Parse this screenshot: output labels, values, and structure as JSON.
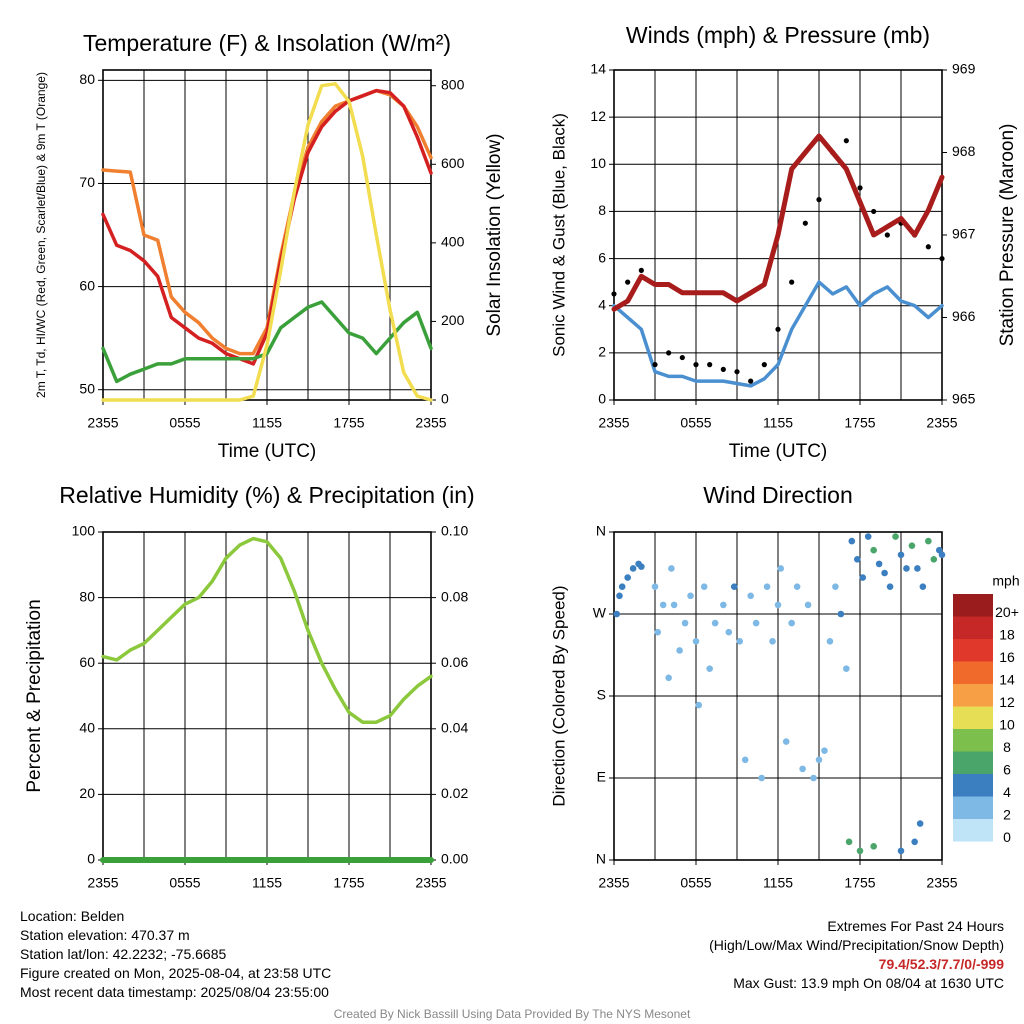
{
  "chart_data": [
    {
      "type": "line",
      "title": "Temperature (F) & Insolation (W/m²)",
      "xlabel": "Time (UTC)",
      "ylabel": "2m T, Td, HI/WC (Red, Green, Scarlet/Blue) & 9m T (Orange)",
      "ylabel_right": "Solar Insolation (Yellow)",
      "x_ticks": [
        "2355",
        "0555",
        "1155",
        "1755",
        "2355"
      ],
      "ylim": [
        49,
        81
      ],
      "y_ticks": [
        50,
        60,
        70,
        80
      ],
      "ylim_right": [
        0,
        840
      ],
      "y_ticks_right": [
        0,
        200,
        400,
        600,
        800
      ],
      "x_hours": [
        0,
        1,
        2,
        3,
        4,
        5,
        6,
        7,
        8,
        9,
        10,
        11,
        12,
        13,
        14,
        15,
        16,
        17,
        18,
        19,
        20,
        21,
        22,
        23,
        24
      ],
      "series": [
        {
          "color": "#f08030",
          "axis": "left",
          "values": [
            71.3,
            71.2,
            71.1,
            65.0,
            64.5,
            59.0,
            57.5,
            56.5,
            55.0,
            54.0,
            53.5,
            53.5,
            56.0,
            63.0,
            69.0,
            73.5,
            76.0,
            77.5,
            78.0,
            78.5,
            79.0,
            78.6,
            77.5,
            75.5,
            72.5
          ]
        },
        {
          "color": "#d42020",
          "axis": "left",
          "values": [
            67.0,
            64.0,
            63.5,
            62.5,
            61.0,
            57.0,
            56.0,
            55.0,
            54.5,
            53.5,
            53.0,
            52.5,
            55.5,
            62.5,
            68.5,
            73.0,
            75.5,
            77.0,
            78.0,
            78.5,
            79.0,
            78.8,
            77.5,
            74.5,
            71.0
          ]
        },
        {
          "color": "#3aa03a",
          "axis": "left",
          "values": [
            54.0,
            50.8,
            51.5,
            52.0,
            52.5,
            52.5,
            53.0,
            53.0,
            53.0,
            53.0,
            53.0,
            53.0,
            53.5,
            56.0,
            57.0,
            58.0,
            58.5,
            57.0,
            55.5,
            55.0,
            53.5,
            55.0,
            56.5,
            57.5,
            54.0
          ]
        },
        {
          "color": "#f2dd50",
          "axis": "right",
          "values": [
            0,
            0,
            0,
            0,
            0,
            0,
            0,
            0,
            0,
            0,
            0,
            10,
            140,
            330,
            530,
            700,
            800,
            805,
            760,
            620,
            420,
            230,
            70,
            10,
            0
          ]
        }
      ]
    },
    {
      "type": "line",
      "title": "Winds (mph) & Pressure (mb)",
      "xlabel": "Time (UTC)",
      "ylabel": "Sonic Wind & Gust (Blue, Black)",
      "ylabel_right": "Station Pressure (Maroon)",
      "x_ticks": [
        "2355",
        "0555",
        "1155",
        "1755",
        "2355"
      ],
      "ylim": [
        0,
        14
      ],
      "y_ticks": [
        0,
        2,
        4,
        6,
        8,
        10,
        12,
        14
      ],
      "ylim_right": [
        965,
        969
      ],
      "y_ticks_right": [
        965,
        966,
        967,
        968,
        969
      ],
      "x_hours": [
        0,
        1,
        2,
        3,
        4,
        5,
        6,
        7,
        8,
        9,
        10,
        11,
        12,
        13,
        14,
        15,
        16,
        17,
        18,
        19,
        20,
        21,
        22,
        23,
        24
      ],
      "series": [
        {
          "color": "#4a90d0",
          "axis": "left",
          "values": [
            4.0,
            3.5,
            3.0,
            1.2,
            1.0,
            1.0,
            0.8,
            0.8,
            0.8,
            0.7,
            0.6,
            0.9,
            1.5,
            3.0,
            4.0,
            5.0,
            4.5,
            4.8,
            4.0,
            4.5,
            4.8,
            4.2,
            4.0,
            3.5,
            4.0
          ]
        },
        {
          "color": "#000000",
          "axis": "left",
          "mode": "markers",
          "values": [
            4.5,
            5.0,
            5.5,
            1.5,
            2.0,
            1.8,
            1.5,
            1.5,
            1.3,
            1.2,
            0.8,
            1.5,
            3.0,
            5.0,
            7.5,
            8.5,
            10.5,
            11.0,
            9.0,
            8.0,
            7.0,
            7.5,
            7.0,
            6.5,
            6.0
          ]
        },
        {
          "color": "#a81c1c",
          "axis": "right",
          "values": [
            966.1,
            966.2,
            966.5,
            966.4,
            966.4,
            966.3,
            966.3,
            966.3,
            966.3,
            966.2,
            966.3,
            966.4,
            967.0,
            967.8,
            968.0,
            968.2,
            968.0,
            967.8,
            967.4,
            967.0,
            967.1,
            967.2,
            967.0,
            967.3,
            967.7
          ]
        }
      ]
    },
    {
      "type": "line",
      "title": "Relative Humidity (%) & Precipitation (in)",
      "ylabel": "Percent & Precipitation",
      "x_ticks": [
        "2355",
        "0555",
        "1155",
        "1755",
        "2355"
      ],
      "ylim": [
        0,
        100
      ],
      "y_ticks": [
        0,
        20,
        40,
        60,
        80,
        100
      ],
      "ylim_right": [
        0,
        0.1
      ],
      "y_ticks_right": [
        "0.00",
        "0.02",
        "0.04",
        "0.06",
        "0.08",
        "0.10"
      ],
      "x_hours": [
        0,
        1,
        2,
        3,
        4,
        5,
        6,
        7,
        8,
        9,
        10,
        11,
        12,
        13,
        14,
        15,
        16,
        17,
        18,
        19,
        20,
        21,
        22,
        23,
        24
      ],
      "series": [
        {
          "color": "#8cc83c",
          "axis": "left",
          "values": [
            62,
            61,
            64,
            66,
            70,
            74,
            78,
            80,
            85,
            92,
            96,
            98,
            97,
            92,
            82,
            70,
            60,
            52,
            45,
            42,
            42,
            44,
            49,
            53,
            56
          ]
        },
        {
          "color": "#3aa03a",
          "axis": "right",
          "values": [
            0,
            0,
            0,
            0,
            0,
            0,
            0,
            0,
            0,
            0,
            0,
            0,
            0,
            0,
            0,
            0,
            0,
            0,
            0,
            0,
            0,
            0,
            0,
            0,
            0
          ]
        }
      ]
    },
    {
      "type": "scatter",
      "title": "Wind Direction",
      "ylabel": "Direction (Colored By Speed)",
      "x_ticks": [
        "2355",
        "0555",
        "1155",
        "1755",
        "2355"
      ],
      "ylim": [
        0,
        360
      ],
      "y_ticks": [
        "N",
        "E",
        "S",
        "W",
        "N"
      ],
      "colorbar": {
        "unit": "mph",
        "labels": [
          "20+",
          "18",
          "16",
          "14",
          "12",
          "10",
          "8",
          "6",
          "4",
          "2",
          "0"
        ],
        "colors": [
          "#9b1c1c",
          "#c62828",
          "#e0392b",
          "#f06a2c",
          "#f79f45",
          "#e6df55",
          "#7cbf4c",
          "#4aa56a",
          "#3b7fc0",
          "#7eb9e6",
          "#bfe4f7"
        ]
      },
      "points": [
        [
          0.1,
          270,
          3
        ],
        [
          0.2,
          290,
          3
        ],
        [
          0.3,
          300,
          4
        ],
        [
          0.5,
          310,
          4
        ],
        [
          0.7,
          320,
          4
        ],
        [
          0.9,
          325,
          4
        ],
        [
          1.0,
          322,
          4
        ],
        [
          1.5,
          300,
          2
        ],
        [
          1.6,
          250,
          2
        ],
        [
          1.8,
          280,
          2
        ],
        [
          2.0,
          200,
          1
        ],
        [
          2.1,
          320,
          1
        ],
        [
          2.2,
          280,
          2
        ],
        [
          2.4,
          230,
          2
        ],
        [
          2.6,
          260,
          2
        ],
        [
          2.8,
          290,
          1
        ],
        [
          3.0,
          240,
          1
        ],
        [
          3.1,
          170,
          1
        ],
        [
          3.3,
          300,
          1
        ],
        [
          3.5,
          210,
          1
        ],
        [
          3.7,
          260,
          1
        ],
        [
          4.0,
          280,
          1
        ],
        [
          4.2,
          250,
          2
        ],
        [
          4.4,
          300,
          3
        ],
        [
          4.6,
          240,
          1
        ],
        [
          4.8,
          110,
          2
        ],
        [
          5.0,
          290,
          1
        ],
        [
          5.2,
          260,
          1
        ],
        [
          5.4,
          90,
          2
        ],
        [
          5.6,
          300,
          1
        ],
        [
          5.8,
          240,
          1
        ],
        [
          6.0,
          280,
          2
        ],
        [
          6.1,
          320,
          1
        ],
        [
          6.3,
          130,
          1
        ],
        [
          6.5,
          260,
          1
        ],
        [
          6.7,
          300,
          1
        ],
        [
          6.9,
          100,
          2
        ],
        [
          7.1,
          280,
          2
        ],
        [
          7.3,
          90,
          2
        ],
        [
          7.5,
          110,
          2
        ],
        [
          7.7,
          120,
          2
        ],
        [
          7.9,
          240,
          2
        ],
        [
          8.1,
          300,
          2
        ],
        [
          8.3,
          270,
          4
        ],
        [
          8.5,
          210,
          2
        ],
        [
          8.7,
          350,
          4
        ],
        [
          8.9,
          330,
          4
        ],
        [
          9.1,
          310,
          3
        ],
        [
          9.3,
          355,
          4
        ],
        [
          9.5,
          340,
          6
        ],
        [
          9.7,
          325,
          4
        ],
        [
          9.9,
          315,
          4
        ],
        [
          10.1,
          300,
          4
        ],
        [
          10.3,
          355,
          6
        ],
        [
          10.5,
          335,
          4
        ],
        [
          10.7,
          320,
          4
        ],
        [
          10.9,
          345,
          5
        ],
        [
          11.1,
          320,
          4
        ],
        [
          11.3,
          300,
          4
        ],
        [
          11.5,
          350,
          6
        ],
        [
          11.7,
          330,
          6
        ],
        [
          11.9,
          340,
          4
        ],
        [
          12.0,
          335,
          4
        ],
        [
          8.6,
          20,
          5
        ],
        [
          9.0,
          10,
          5
        ],
        [
          9.5,
          15,
          5
        ],
        [
          10.5,
          10,
          4
        ],
        [
          11.0,
          20,
          4
        ],
        [
          11.2,
          40,
          4
        ]
      ]
    }
  ],
  "info_left": [
    "Location: Belden",
    "Station elevation: 470.37 m",
    "Station lat/lon: 42.2232; -75.6685",
    "Figure created on Mon, 2025-08-04, at 23:58 UTC",
    "Most recent data timestamp: 2025/08/04 23:55:00"
  ],
  "info_right": {
    "title": "Extremes For Past 24 Hours",
    "subtitle": "(High/Low/Max Wind/Precipitation/Snow Depth)",
    "values": "79.4/52.3/7.7/0/-999",
    "gust": "Max Gust: 13.9 mph On 08/04 at 1630 UTC"
  },
  "credit": "Created By Nick Bassill Using Data Provided By The NYS Mesonet"
}
